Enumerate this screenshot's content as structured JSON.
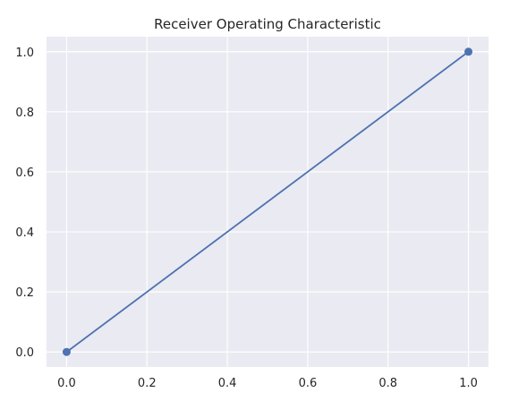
{
  "chart_data": {
    "type": "line",
    "title": "Receiver Operating Characteristic",
    "xlabel": "",
    "ylabel": "",
    "xlim": [
      -0.05,
      1.05
    ],
    "ylim": [
      -0.05,
      1.05
    ],
    "x_ticks": [
      "0.0",
      "0.2",
      "0.4",
      "0.6",
      "0.8",
      "1.0"
    ],
    "y_ticks": [
      "0.0",
      "0.2",
      "0.4",
      "0.6",
      "0.8",
      "1.0"
    ],
    "grid": true,
    "series": [
      {
        "x": [
          0.0,
          1.0
        ],
        "y": [
          0.0,
          1.0
        ],
        "color": "#4c72b0",
        "marker": "circle"
      }
    ],
    "colors": {
      "plot_background": "#eaeaf2",
      "grid": "#ffffff",
      "text": "#262626"
    }
  }
}
